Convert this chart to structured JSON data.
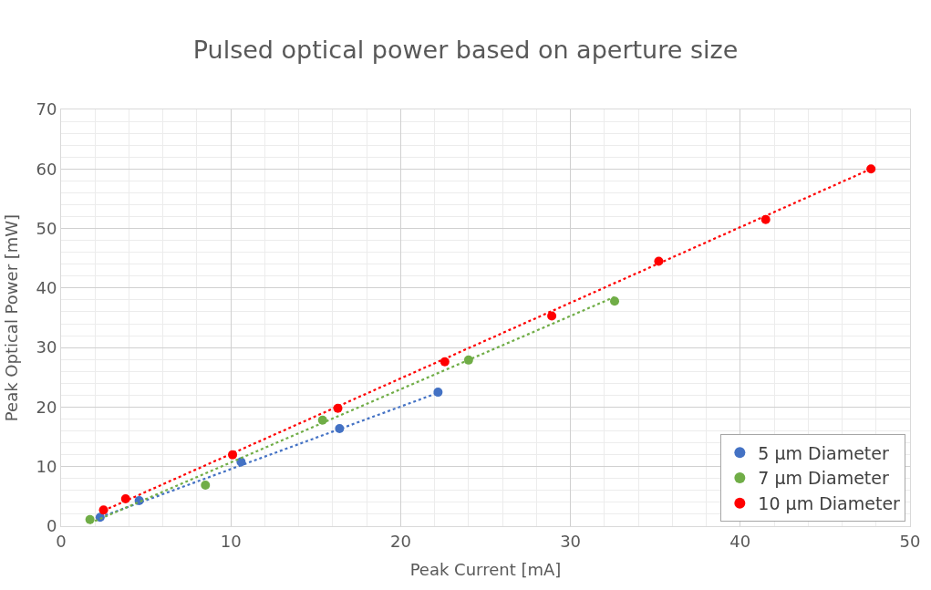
{
  "chart_data": {
    "type": "scatter",
    "title": "Pulsed optical power based on aperture size",
    "xlabel": "Peak Current [mA]",
    "ylabel": "Peak Optical Power [mW]",
    "series": [
      {
        "name": "5 µm Diameter",
        "color": "#4472c4",
        "x": [
          2.3,
          4.6,
          10.6,
          16.4,
          22.2
        ],
        "values": [
          1.5,
          4.3,
          10.8,
          16.4,
          22.5
        ]
      },
      {
        "name": "7 µm Diameter",
        "color": "#70ad47",
        "x": [
          1.7,
          8.5,
          15.4,
          24.0,
          32.6
        ],
        "values": [
          1.1,
          6.9,
          17.8,
          27.9,
          37.8
        ]
      },
      {
        "name": "10 µm Diameter",
        "color": "#ff0000",
        "x": [
          2.5,
          3.8,
          10.1,
          16.3,
          22.6,
          28.9,
          35.2,
          41.5,
          47.7
        ],
        "values": [
          2.7,
          4.6,
          12.0,
          19.8,
          27.6,
          35.3,
          44.5,
          51.5,
          60.0
        ]
      },
      {
        "type": "line",
        "marker": "none",
        "line_style": "dotted",
        "color": "#4472c4",
        "x": [
          2.3,
          22.2
        ],
        "values": [
          1.5,
          22.4
        ]
      },
      {
        "type": "line",
        "marker": "none",
        "line_style": "dotted",
        "color": "#70ad47",
        "x": [
          1.7,
          32.6
        ],
        "values": [
          0.5,
          38.5
        ]
      },
      {
        "type": "line",
        "marker": "none",
        "line_style": "dotted",
        "color": "#ff0000",
        "x": [
          2.5,
          47.7
        ],
        "values": [
          2.6,
          60.0
        ]
      }
    ],
    "xlim": [
      0,
      50
    ],
    "xticks": [
      0,
      10,
      20,
      30,
      40,
      50
    ],
    "ylim": [
      0,
      70
    ],
    "yticks": [
      0,
      10,
      20,
      30,
      40,
      50,
      60,
      70
    ],
    "grid": true,
    "legend": "bottom right",
    "marker": "circle"
  }
}
